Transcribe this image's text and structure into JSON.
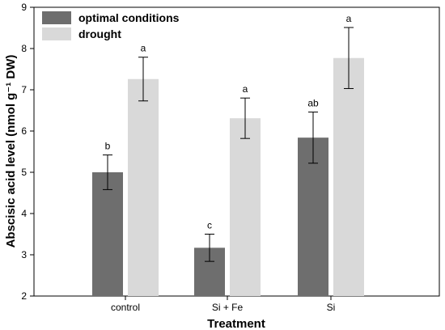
{
  "chart_data": {
    "type": "bar",
    "title": "",
    "xlabel": "Treatment",
    "ylabel": "Abscisic acid level (nmol g⁻¹ DW)",
    "ylim": [
      2,
      9
    ],
    "yticks": [
      "2",
      "3",
      "4",
      "5",
      "6",
      "7",
      "8",
      "9"
    ],
    "categories": [
      "control",
      "Si + Fe",
      "Si"
    ],
    "legend_position": "top-left",
    "grid": false,
    "series": [
      {
        "name": "optimal conditions",
        "color": "#6e6e6e",
        "values": [
          5.0,
          3.17,
          5.84
        ],
        "errors": [
          0.42,
          0.33,
          0.62
        ],
        "labels": [
          "b",
          "c",
          "ab"
        ]
      },
      {
        "name": "drought",
        "color": "#d9d9d9",
        "values": [
          7.26,
          6.31,
          7.77
        ],
        "errors": [
          0.53,
          0.49,
          0.74
        ],
        "labels": [
          "a",
          "a",
          "a"
        ]
      }
    ]
  }
}
